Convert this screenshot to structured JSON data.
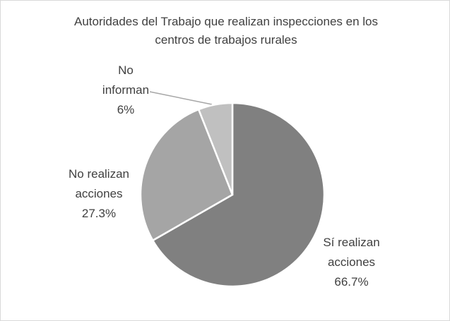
{
  "chart_data": {
    "type": "pie",
    "title": "Autoridades del Trabajo que realizan inspecciones en los centros de trabajos rurales",
    "categories": [
      "Sí realizan acciones",
      "No realizan acciones",
      "No informan"
    ],
    "values": [
      66.7,
      27.3,
      6
    ],
    "value_labels": [
      "66.7%",
      "27.3%",
      "6%"
    ],
    "colors": [
      "#808080",
      "#a5a5a5",
      "#c0c0c0"
    ]
  }
}
